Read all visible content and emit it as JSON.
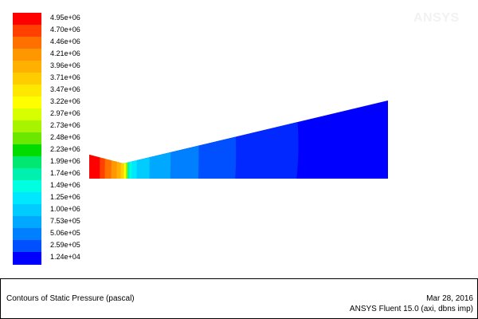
{
  "window": {
    "watermark": "ANSYS"
  },
  "legend": {
    "levels": [
      {
        "label": "4.95e+06",
        "color": "#ff0000"
      },
      {
        "label": "4.70e+06",
        "color": "#ff4000"
      },
      {
        "label": "4.46e+06",
        "color": "#ff7000"
      },
      {
        "label": "4.21e+06",
        "color": "#ff9800"
      },
      {
        "label": "3.96e+06",
        "color": "#ffb000"
      },
      {
        "label": "3.71e+06",
        "color": "#ffcc00"
      },
      {
        "label": "3.47e+06",
        "color": "#ffe800"
      },
      {
        "label": "3.22e+06",
        "color": "#ffff00"
      },
      {
        "label": "2.97e+06",
        "color": "#d8ff00"
      },
      {
        "label": "2.73e+06",
        "color": "#a8f400"
      },
      {
        "label": "2.48e+06",
        "color": "#6ce800"
      },
      {
        "label": "2.23e+06",
        "color": "#00dc00"
      },
      {
        "label": "1.99e+06",
        "color": "#00e870"
      },
      {
        "label": "1.74e+06",
        "color": "#00f0b0"
      },
      {
        "label": "1.49e+06",
        "color": "#00ffe0"
      },
      {
        "label": "1.25e+06",
        "color": "#00e8ff"
      },
      {
        "label": "1.00e+06",
        "color": "#00ccff"
      },
      {
        "label": "7.53e+05",
        "color": "#00a8ff"
      },
      {
        "label": "5.06e+05",
        "color": "#0080ff"
      },
      {
        "label": "2.59e+05",
        "color": "#0050ff"
      },
      {
        "label": "1.24e+04",
        "color": "#0000ff"
      }
    ]
  },
  "footer": {
    "title": "Contours of Static Pressure (pascal)",
    "date": "Mar 28, 2016",
    "solver": "ANSYS Fluent 15.0 (axi, dbns imp)"
  }
}
